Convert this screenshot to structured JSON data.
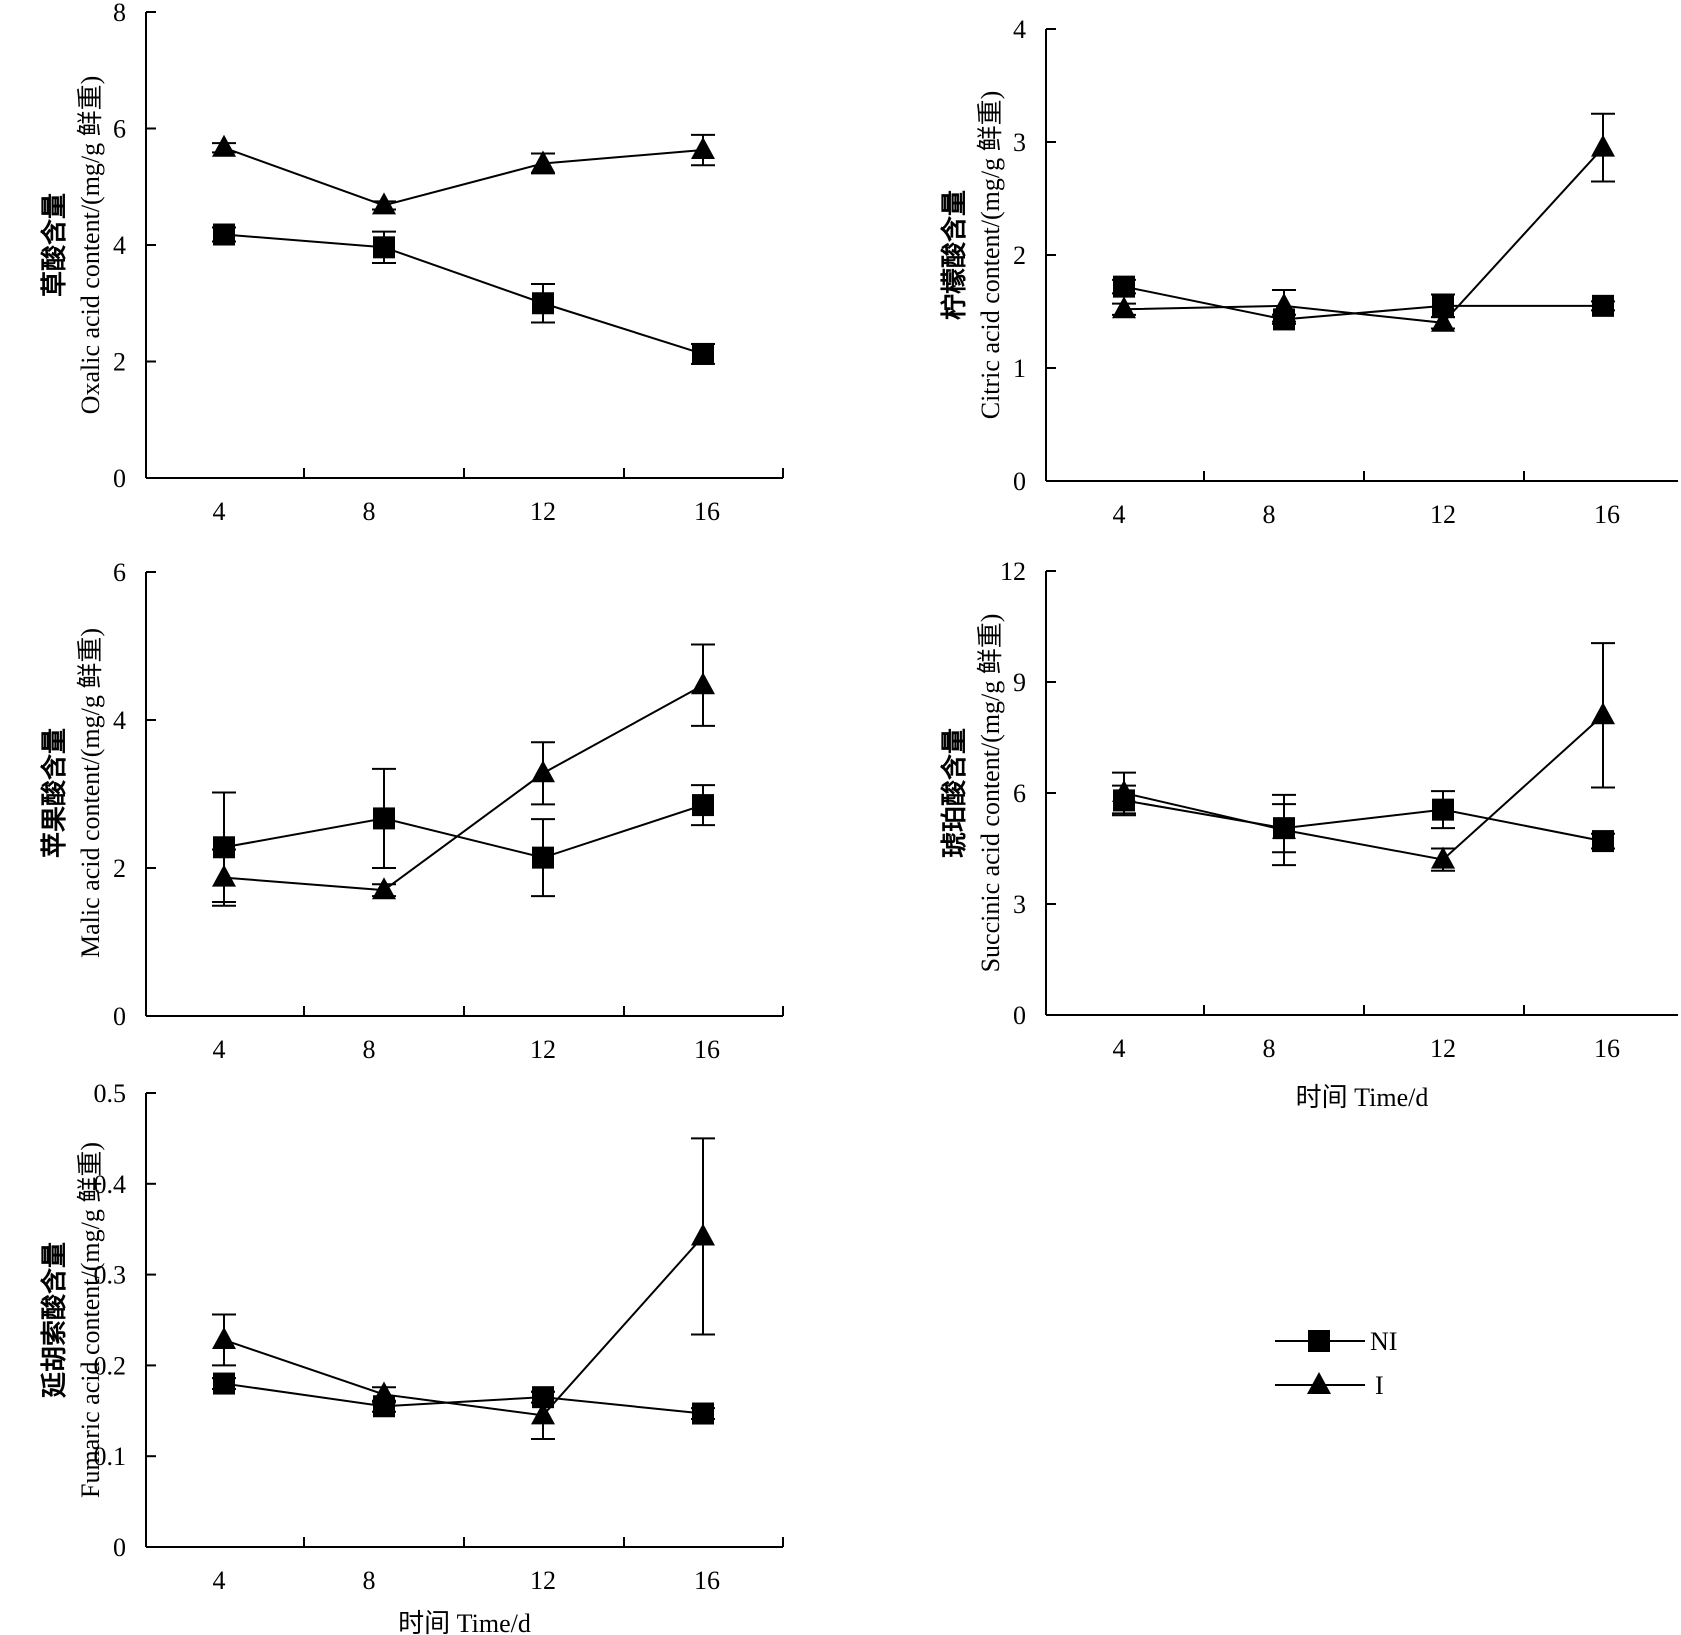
{
  "chart_data": [
    {
      "type": "line",
      "ylabel_cn": "草酸含量",
      "ylabel_en": "Oxalic acid content/(mg/g 鲜重)",
      "xlabel": "",
      "ylim": [
        0,
        8
      ],
      "yticks": [
        "0",
        "2",
        "4",
        "6",
        "8"
      ],
      "xticks": [
        "4",
        "8",
        "12",
        "16"
      ],
      "series": [
        {
          "name": "NI",
          "marker": "square",
          "x": [
            4,
            8,
            12,
            16
          ],
          "values": [
            4.18,
            3.96,
            3.0,
            2.13
          ],
          "err": [
            0.12,
            0.27,
            0.33,
            0.17
          ]
        },
        {
          "name": "I",
          "marker": "triangle",
          "x": [
            4,
            8,
            12,
            16
          ],
          "values": [
            5.67,
            4.68,
            5.4,
            5.63
          ],
          "err": [
            0.08,
            0.07,
            0.17,
            0.26
          ]
        }
      ]
    },
    {
      "type": "line",
      "ylabel_cn": "柠檬酸含量",
      "ylabel_en": "Citric acid content/(mg/g 鲜重)",
      "xlabel": "",
      "ylim": [
        0,
        4
      ],
      "yticks": [
        "0",
        "1",
        "2",
        "3",
        "4"
      ],
      "xticks": [
        "4",
        "8",
        "12",
        "16"
      ],
      "series": [
        {
          "name": "NI",
          "marker": "square",
          "x": [
            4,
            8,
            12,
            16
          ],
          "values": [
            1.72,
            1.43,
            1.55,
            1.55
          ],
          "err": [
            0.06,
            0.04,
            0.1,
            0.04
          ]
        },
        {
          "name": "I",
          "marker": "triangle",
          "x": [
            4,
            8,
            12,
            16
          ],
          "values": [
            1.52,
            1.55,
            1.4,
            2.95
          ],
          "err": [
            0.05,
            0.14,
            0.05,
            0.3
          ]
        }
      ]
    },
    {
      "type": "line",
      "ylabel_cn": "苹果酸含量",
      "ylabel_en": "Malic acid content/(mg/g 鲜重)",
      "xlabel": "",
      "ylim": [
        0,
        6
      ],
      "yticks": [
        "0",
        "2",
        "4",
        "6"
      ],
      "xticks": [
        "4",
        "8",
        "12",
        "16"
      ],
      "series": [
        {
          "name": "NI",
          "marker": "square",
          "x": [
            4,
            8,
            12,
            16
          ],
          "values": [
            2.28,
            2.67,
            2.14,
            2.85
          ],
          "err": [
            0.74,
            0.67,
            0.52,
            0.27
          ]
        },
        {
          "name": "I",
          "marker": "triangle",
          "x": [
            4,
            8,
            12,
            16
          ],
          "values": [
            1.87,
            1.7,
            3.28,
            4.47
          ],
          "err": [
            0.38,
            0.08,
            0.42,
            0.55
          ]
        }
      ]
    },
    {
      "type": "line",
      "ylabel_cn": "琥珀酸含量",
      "ylabel_en": "Succinic acid content/(mg/g 鲜重)",
      "xlabel": "时间 Time/d",
      "ylim": [
        0,
        12
      ],
      "yticks": [
        "0",
        "3",
        "6",
        "9",
        "12"
      ],
      "xticks": [
        "4",
        "8",
        "12",
        "16"
      ],
      "series": [
        {
          "name": "NI",
          "marker": "square",
          "x": [
            4,
            8,
            12,
            16
          ],
          "values": [
            5.8,
            5.05,
            5.55,
            4.7
          ],
          "err": [
            0.4,
            0.65,
            0.5,
            0.2
          ]
        },
        {
          "name": "I",
          "marker": "triangle",
          "x": [
            4,
            8,
            12,
            16
          ],
          "values": [
            6.0,
            5.0,
            4.2,
            8.1
          ],
          "err": [
            0.55,
            0.95,
            0.3,
            1.95
          ]
        }
      ]
    },
    {
      "type": "line",
      "ylabel_cn": "延胡索酸含量",
      "ylabel_en": "Fumaric acid content/(mg/g 鲜重)",
      "xlabel": "时间 Time/d",
      "ylim": [
        0,
        0.5
      ],
      "yticks": [
        "0",
        "0.1",
        "0.2",
        "0.3",
        "0.4",
        "0.5"
      ],
      "xticks": [
        "4",
        "8",
        "12",
        "16"
      ],
      "series": [
        {
          "name": "NI",
          "marker": "square",
          "x": [
            4,
            8,
            12,
            16
          ],
          "values": [
            0.18,
            0.155,
            0.165,
            0.147
          ],
          "err": [
            0.006,
            0.006,
            0.006,
            0.006
          ]
        },
        {
          "name": "I",
          "marker": "triangle",
          "x": [
            4,
            8,
            12,
            16
          ],
          "values": [
            0.228,
            0.168,
            0.145,
            0.342
          ],
          "err": [
            0.028,
            0.008,
            0.026,
            0.108
          ]
        }
      ]
    }
  ],
  "legend": {
    "placement": "bottom-right",
    "items": [
      {
        "label": "NI",
        "marker": "square"
      },
      {
        "label": "I",
        "marker": "triangle"
      }
    ]
  }
}
